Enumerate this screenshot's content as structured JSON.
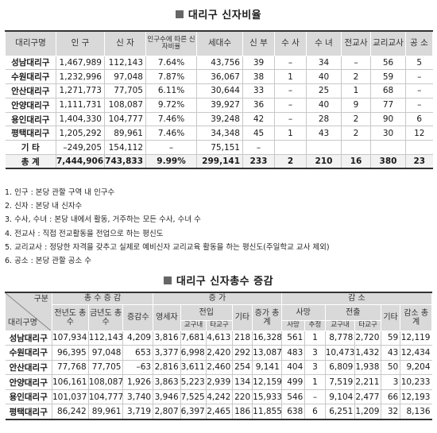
{
  "section1": {
    "title": "대리구 신자비율",
    "headers": [
      "대리구명",
      "인 구",
      "신 자",
      "인구수에 따른 신자비율",
      "세대수",
      "신 부",
      "수 사",
      "수 녀",
      "전교사",
      "교리교사",
      "공 소"
    ],
    "rows": [
      [
        "성남대리구",
        "1,467,989",
        "112,143",
        "7.64%",
        "43,756",
        "39",
        "–",
        "34",
        "–",
        "56",
        "5"
      ],
      [
        "수원대리구",
        "1,232,996",
        "97,048",
        "7.87%",
        "36,067",
        "38",
        "1",
        "40",
        "2",
        "59",
        "–"
      ],
      [
        "안산대리구",
        "1,271,773",
        "77,705",
        "6.11%",
        "30,644",
        "33",
        "–",
        "25",
        "1",
        "68",
        "–"
      ],
      [
        "안양대리구",
        "1,111,731",
        "108,087",
        "9.72%",
        "39,927",
        "36",
        "–",
        "40",
        "9",
        "77",
        "–"
      ],
      [
        "용인대리구",
        "1,404,330",
        "104,777",
        "7.46%",
        "39,248",
        "42",
        "–",
        "28",
        "2",
        "90",
        "6"
      ],
      [
        "평택대리구",
        "1,205,292",
        "89,961",
        "7.46%",
        "34,348",
        "45",
        "1",
        "43",
        "2",
        "30",
        "12"
      ],
      [
        "기 타",
        "–249,205",
        "154,112",
        "–",
        "75,151",
        "–",
        "",
        "",
        "",
        "",
        ""
      ]
    ],
    "total": [
      "총 계",
      "7,444,906",
      "743,833",
      "9.99%",
      "299,141",
      "233",
      "2",
      "210",
      "16",
      "380",
      "23"
    ]
  },
  "notes": [
    "1. 인구 : 본당 관할 구역 내 인구수",
    "2. 신자 : 본당 내 신자수",
    "3. 수사, 수녀 : 본당 내에서 활동, 거주하는 모든 수사, 수녀 수",
    "4. 전교사 : 직접 전교활동을 전업으로 하는 평신도",
    "5. 교리교사 : 정당한 자격을 갖추고 실제로 예비신자 교리교육 활동을 하는 평신도(주일학교 교사 제외)",
    "6. 공소 : 본당 관할 공소 수"
  ],
  "section2": {
    "title": "대리구 신자총수 증감",
    "corner_top": "구분",
    "corner_bottom": "대리구명",
    "group_headers": {
      "total_change": "총 수 증 감",
      "increase": "증 가",
      "decrease": "감 소"
    },
    "sub_headers": {
      "prev_year": "전년도 총수",
      "this_year": "금년도 총수",
      "net": "증감수",
      "baptized": "영세자",
      "transfer_in": "전입",
      "other_inc": "기타",
      "inc_total": "증가 총계",
      "death": "사망",
      "transfer_out": "전출",
      "other_dec": "기타",
      "dec_total": "감소 총계"
    },
    "sub_sub_headers": {
      "in_parish": "교구내",
      "in_other": "타교구",
      "death_confirmed": "사망",
      "death_estimated": "추정",
      "out_parish": "교구내",
      "out_other": "타교구"
    },
    "rows": [
      [
        "성남대리구",
        "107,934",
        "112,143",
        "4,209",
        "3,816",
        "7,681",
        "4,613",
        "218",
        "16,328",
        "561",
        "1",
        "8,778",
        "2,720",
        "59",
        "12,119"
      ],
      [
        "수원대리구",
        "96,395",
        "97,048",
        "653",
        "3,377",
        "6,998",
        "2,420",
        "292",
        "13,087",
        "483",
        "3",
        "10,473",
        "1,432",
        "43",
        "12,434"
      ],
      [
        "안산대리구",
        "77,768",
        "77,705",
        "–63",
        "2,816",
        "3,611",
        "2,460",
        "254",
        "9,141",
        "404",
        "3",
        "6,809",
        "1,938",
        "50",
        "9,204"
      ],
      [
        "안양대리구",
        "106,161",
        "108,087",
        "1,926",
        "3,863",
        "5,223",
        "2,939",
        "134",
        "12,159",
        "499",
        "1",
        "7,519",
        "2,211",
        "3",
        "10,233"
      ],
      [
        "용인대리구",
        "101,037",
        "104,777",
        "3,740",
        "3,946",
        "7,525",
        "4,242",
        "220",
        "15,933",
        "546",
        "–",
        "9,104",
        "2,477",
        "66",
        "12,193"
      ],
      [
        "평택대리구",
        "86,242",
        "89,961",
        "3,719",
        "2,807",
        "6,397",
        "2,465",
        "186",
        "11,855",
        "638",
        "6",
        "6,251",
        "1,209",
        "32",
        "8,136"
      ]
    ]
  }
}
